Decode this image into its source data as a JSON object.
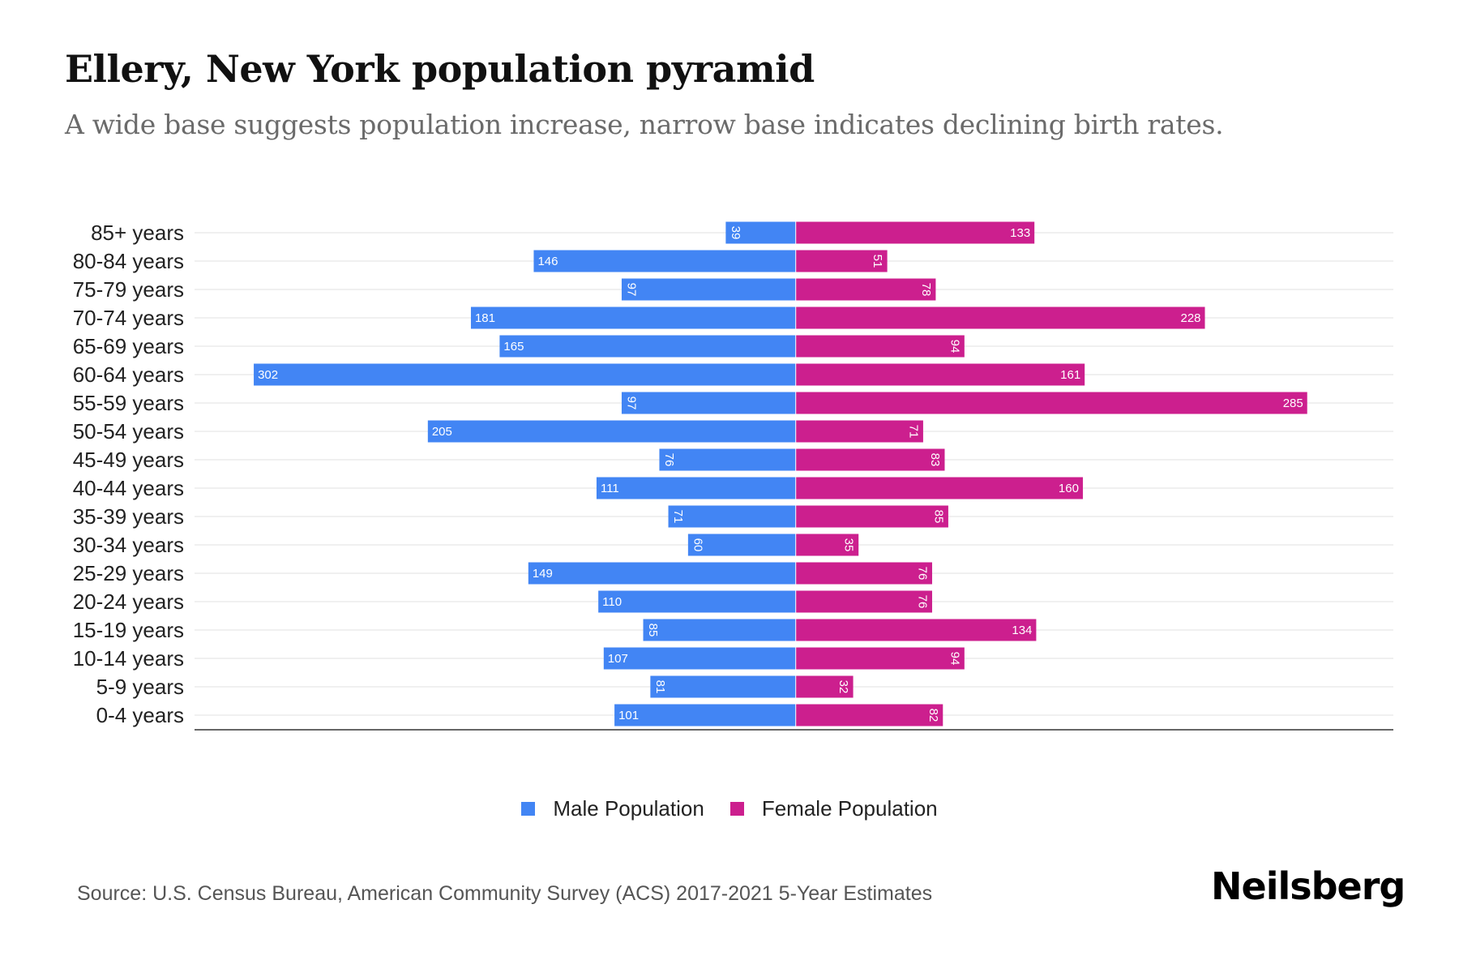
{
  "header": {
    "title": "Ellery, New York population pyramid",
    "subtitle": "A wide base suggests population increase, narrow base indicates declining birth rates."
  },
  "chart_data": {
    "type": "bar",
    "orientation": "horizontal-diverging",
    "title": "Ellery, New York population pyramid",
    "subtitle": "A wide base suggests population increase, narrow base indicates declining birth rates.",
    "xlabel": "",
    "ylabel": "",
    "categories": [
      "85+ years",
      "80-84 years",
      "75-79 years",
      "70-74 years",
      "65-69 years",
      "60-64 years",
      "55-59 years",
      "50-54 years",
      "45-49 years",
      "40-44 years",
      "35-39 years",
      "30-34 years",
      "25-29 years",
      "20-24 years",
      "15-19 years",
      "10-14 years",
      "5-9 years",
      "0-4 years"
    ],
    "series": [
      {
        "name": "Male Population",
        "side": "left",
        "color": "#4285F4",
        "values": [
          39,
          146,
          97,
          181,
          165,
          302,
          97,
          205,
          76,
          111,
          71,
          60,
          149,
          110,
          85,
          107,
          81,
          101
        ]
      },
      {
        "name": "Female Population",
        "side": "right",
        "color": "#CC1F8E",
        "values": [
          133,
          51,
          78,
          228,
          94,
          161,
          285,
          71,
          83,
          160,
          85,
          35,
          76,
          76,
          134,
          94,
          32,
          82
        ]
      }
    ],
    "xlim": [
      -335,
      333
    ],
    "grid": true,
    "legend_position": "bottom-center",
    "data_labels": true
  },
  "legend": {
    "items": [
      {
        "label": "Male Population",
        "color": "#4285F4"
      },
      {
        "label": "Female Population",
        "color": "#CC1F8E"
      }
    ]
  },
  "footer": {
    "source": "Source: U.S. Census Bureau, American Community Survey (ACS) 2017-2021 5-Year Estimates",
    "brand": "Neilsberg"
  }
}
